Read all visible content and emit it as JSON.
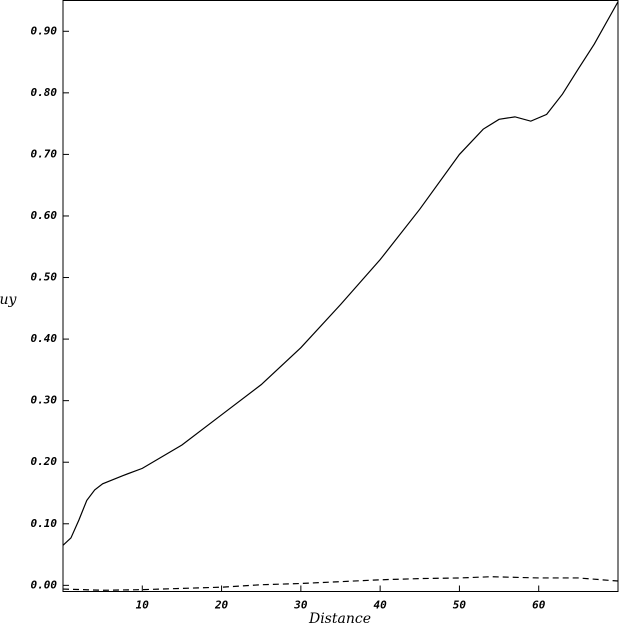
{
  "chart_data": {
    "type": "line",
    "x_label": "Distance",
    "y_label": "uy",
    "xlim": [
      0,
      70
    ],
    "ylim": [
      -0.01,
      0.95
    ],
    "xticks": [
      10,
      20,
      30,
      40,
      50,
      60
    ],
    "yticks": [
      {
        "value": 0,
        "label": "0.00"
      },
      {
        "value": 0.1,
        "label": "0.10"
      },
      {
        "value": 0.2,
        "label": "0.20"
      },
      {
        "value": 0.3,
        "label": "0.30"
      },
      {
        "value": 0.4,
        "label": "0.40"
      },
      {
        "value": 0.5,
        "label": "0.50"
      },
      {
        "value": 0.6,
        "label": "0.60"
      },
      {
        "value": 0.7,
        "label": "0.70"
      },
      {
        "value": 0.8,
        "label": "0.80"
      },
      {
        "value": 0.9,
        "label": "0.90"
      }
    ],
    "series": [
      {
        "color": "#000000",
        "dash": false,
        "x": [
          0,
          1,
          2,
          3,
          4,
          5,
          7.5,
          10,
          15,
          20,
          25,
          30,
          35,
          40,
          45,
          50,
          53,
          55,
          57,
          59,
          61,
          63,
          65,
          67,
          70
        ],
        "values": [
          0.065,
          0.077,
          0.106,
          0.138,
          0.155,
          0.165,
          0.178,
          0.19,
          0.228,
          0.277,
          0.326,
          0.386,
          0.456,
          0.529,
          0.611,
          0.7,
          0.741,
          0.757,
          0.761,
          0.754,
          0.765,
          0.798,
          0.839,
          0.879,
          0.948
        ]
      },
      {
        "color": "#000000",
        "dash": true,
        "x": [
          0,
          5,
          10,
          15,
          20,
          25,
          30,
          35,
          40,
          45,
          50,
          54,
          60,
          65,
          70
        ],
        "values": [
          -0.006,
          -0.008,
          -0.007,
          -0.005,
          -0.003,
          0.001,
          0.003,
          0.006,
          0.009,
          0.011,
          0.012,
          0.014,
          0.012,
          0.012,
          0.007
        ]
      }
    ]
  }
}
